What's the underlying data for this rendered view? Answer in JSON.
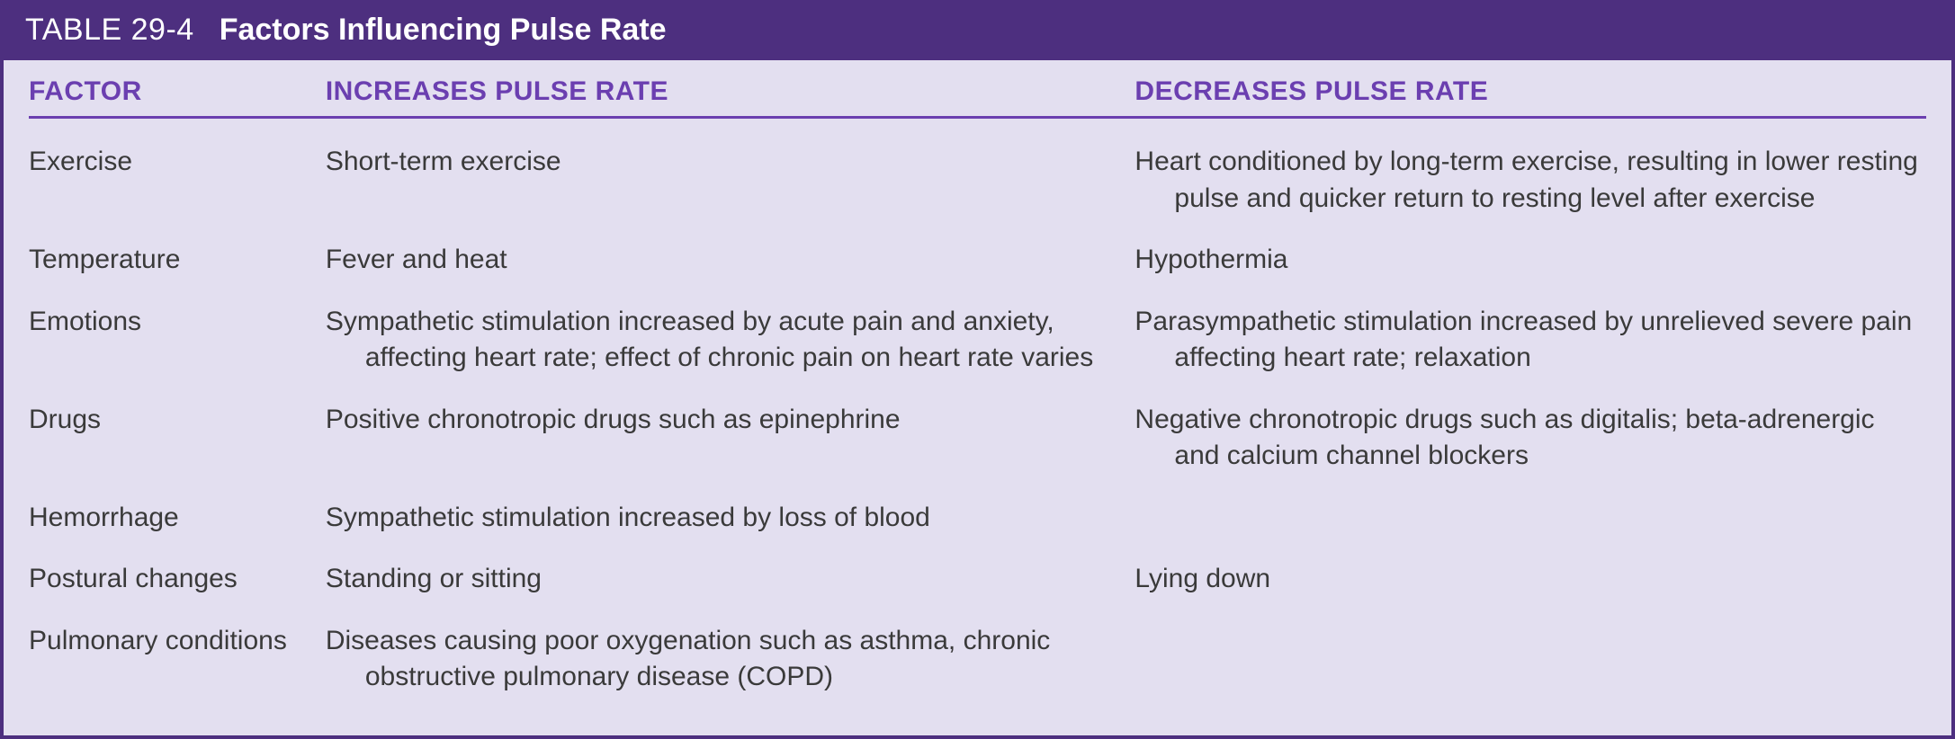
{
  "colors": {
    "border": "#4d2f7f",
    "header_bg": "#4d2f7f",
    "header_text": "#ffffff",
    "body_bg": "#e3dff0",
    "col_header_text": "#6b3fb0",
    "rule": "#6b3fb0",
    "cell_text": "#3a3a3a"
  },
  "title": {
    "number": "TABLE 29-4",
    "text": "Factors Influencing Pulse Rate"
  },
  "columns": {
    "factor": "FACTOR",
    "increase": "INCREASES PULSE RATE",
    "decrease": "DECREASES PULSE RATE"
  },
  "rows": [
    {
      "factor": "Exercise",
      "increase": "Short-term exercise",
      "decrease": "Heart conditioned by long-term exercise, resulting in lower resting pulse and quicker return to resting level after exercise"
    },
    {
      "factor": "Temperature",
      "increase": "Fever and heat",
      "decrease": "Hypothermia"
    },
    {
      "factor": "Emotions",
      "increase": "Sympathetic stimulation increased by acute pain and anxiety, affecting heart rate; effect of chronic pain on heart rate varies",
      "decrease": "Parasympathetic stimulation increased by unrelieved severe pain affecting heart rate; relaxation"
    },
    {
      "factor": "Drugs",
      "increase": "Positive chronotropic drugs such as epinephrine",
      "decrease": "Negative chronotropic drugs such as digitalis; beta-adrenergic and calcium channel blockers"
    },
    {
      "factor": "Hemorrhage",
      "increase": "Sympathetic stimulation increased by loss of blood",
      "decrease": ""
    },
    {
      "factor": "Postural changes",
      "increase": "Standing or sitting",
      "decrease": "Lying down"
    },
    {
      "factor": "Pulmonary conditions",
      "increase": "Diseases causing poor oxygenation such as asthma, chronic obstructive pulmonary disease (COPD)",
      "decrease": ""
    }
  ]
}
